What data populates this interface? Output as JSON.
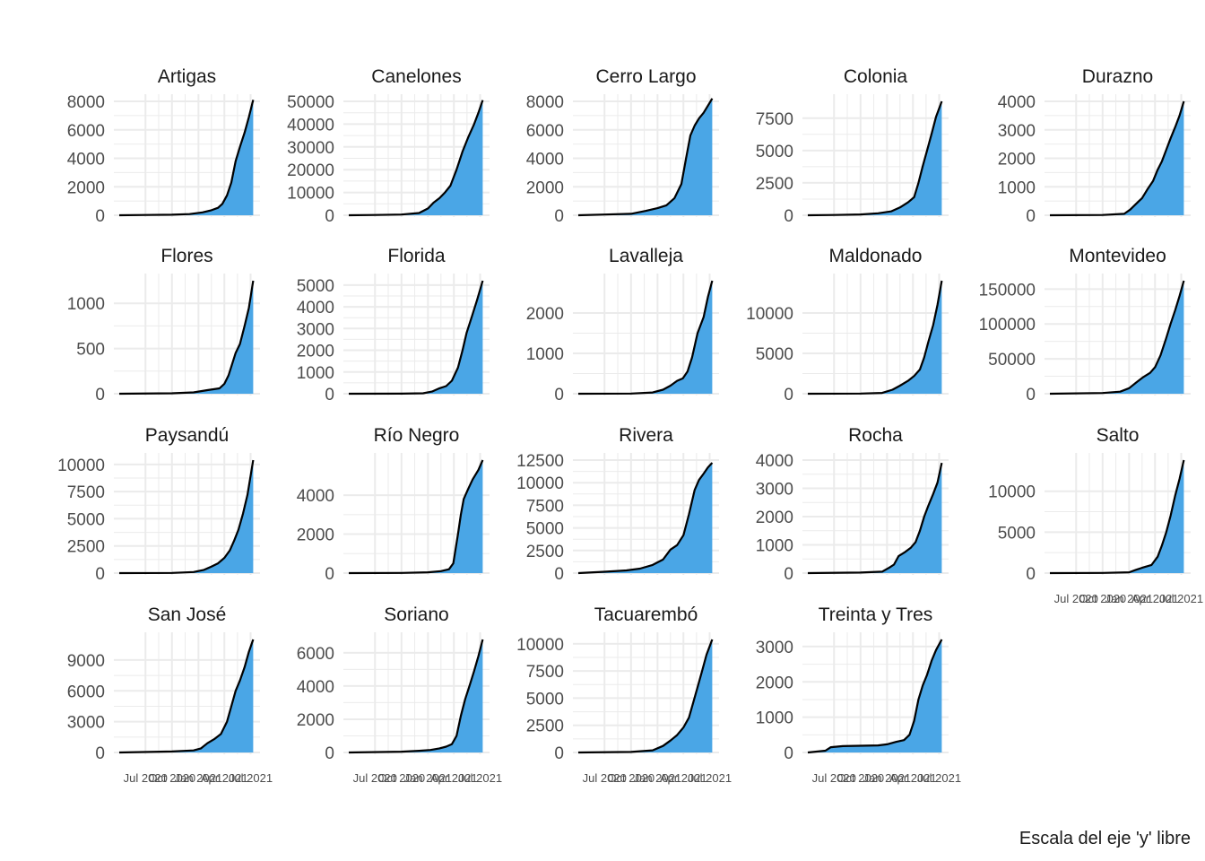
{
  "chart_data": {
    "type": "area",
    "layout": "facet-grid",
    "columns": 5,
    "fill_color": "#4aa6e6",
    "line_color": "#000000",
    "grid_color": "#ebebeb",
    "grid": true,
    "x_domain": [
      "2020-04-01",
      "2021-07-15"
    ],
    "x_ticks": [
      "Jul 2020",
      "Oct 2020",
      "Jan 2021",
      "Apr 2021",
      "Jul 2021"
    ],
    "caption": "Escala del eje 'y' libre",
    "panels": [
      {
        "name": "Artigas",
        "ylim": [
          0,
          8000
        ],
        "yticks": [
          0,
          2000,
          4000,
          6000,
          8000
        ],
        "x": [
          "2020-04-01",
          "2020-07-01",
          "2020-10-01",
          "2020-12-01",
          "2021-01-15",
          "2021-02-15",
          "2021-03-10",
          "2021-03-25",
          "2021-04-10",
          "2021-04-25",
          "2021-05-10",
          "2021-05-25",
          "2021-06-10",
          "2021-06-25",
          "2021-07-10"
        ],
        "y": [
          0,
          20,
          40,
          80,
          200,
          350,
          520,
          800,
          1400,
          2300,
          3800,
          4800,
          5800,
          6900,
          8100
        ]
      },
      {
        "name": "Canelones",
        "ylim": [
          0,
          50000
        ],
        "yticks": [
          0,
          10000,
          20000,
          30000,
          40000,
          50000
        ],
        "x": [
          "2020-04-01",
          "2020-07-01",
          "2020-10-01",
          "2020-12-01",
          "2021-01-01",
          "2021-01-20",
          "2021-02-10",
          "2021-03-01",
          "2021-03-20",
          "2021-04-10",
          "2021-05-01",
          "2021-05-20",
          "2021-06-10",
          "2021-06-25",
          "2021-07-10"
        ],
        "y": [
          0,
          100,
          300,
          1000,
          3000,
          5500,
          7500,
          10000,
          13000,
          20000,
          28000,
          34000,
          40000,
          45000,
          50500
        ]
      },
      {
        "name": "Cerro Largo",
        "ylim": [
          0,
          8000
        ],
        "yticks": [
          0,
          2000,
          4000,
          6000,
          8000
        ],
        "x": [
          "2020-04-01",
          "2020-07-01",
          "2020-10-01",
          "2020-11-20",
          "2021-01-01",
          "2021-02-01",
          "2021-03-01",
          "2021-03-25",
          "2021-04-10",
          "2021-04-25",
          "2021-05-10",
          "2021-05-25",
          "2021-06-10",
          "2021-06-25",
          "2021-07-10"
        ],
        "y": [
          0,
          50,
          100,
          300,
          500,
          700,
          1200,
          2200,
          4000,
          5600,
          6300,
          6800,
          7200,
          7700,
          8200
        ]
      },
      {
        "name": "Colonia",
        "ylim": [
          0,
          8800
        ],
        "yticks": [
          0,
          2500,
          5000,
          7500
        ],
        "x": [
          "2020-04-01",
          "2020-07-01",
          "2020-10-01",
          "2020-12-01",
          "2021-01-15",
          "2021-02-15",
          "2021-03-15",
          "2021-04-05",
          "2021-04-20",
          "2021-05-05",
          "2021-05-20",
          "2021-06-05",
          "2021-06-20",
          "2021-07-10"
        ],
        "y": [
          0,
          20,
          60,
          150,
          300,
          600,
          1000,
          1400,
          2500,
          3800,
          5000,
          6300,
          7600,
          8800
        ]
      },
      {
        "name": "Durazno",
        "ylim": [
          0,
          4000
        ],
        "yticks": [
          0,
          1000,
          2000,
          3000,
          4000
        ],
        "x": [
          "2020-04-01",
          "2020-10-01",
          "2020-12-15",
          "2021-01-05",
          "2021-01-25",
          "2021-02-15",
          "2021-03-05",
          "2021-03-25",
          "2021-04-10",
          "2021-04-25",
          "2021-05-10",
          "2021-05-25",
          "2021-06-10",
          "2021-06-25",
          "2021-07-10"
        ],
        "y": [
          0,
          10,
          50,
          200,
          400,
          600,
          900,
          1200,
          1600,
          1900,
          2300,
          2700,
          3100,
          3500,
          4000
        ]
      },
      {
        "name": "Flores",
        "ylim": [
          0,
          1250
        ],
        "yticks": [
          0,
          500,
          1000
        ],
        "x": [
          "2020-04-01",
          "2020-10-01",
          "2020-12-15",
          "2021-02-01",
          "2021-03-15",
          "2021-04-01",
          "2021-04-15",
          "2021-04-25",
          "2021-05-10",
          "2021-05-25",
          "2021-06-10",
          "2021-06-25",
          "2021-07-10"
        ],
        "y": [
          0,
          5,
          15,
          40,
          60,
          110,
          200,
          300,
          450,
          550,
          750,
          950,
          1250
        ]
      },
      {
        "name": "Florida",
        "ylim": [
          0,
          5200
        ],
        "yticks": [
          0,
          1000,
          2000,
          3000,
          4000,
          5000
        ],
        "x": [
          "2020-04-01",
          "2020-10-01",
          "2020-12-15",
          "2021-01-15",
          "2021-02-10",
          "2021-03-05",
          "2021-03-25",
          "2021-04-15",
          "2021-05-01",
          "2021-05-15",
          "2021-06-01",
          "2021-06-20",
          "2021-07-10"
        ],
        "y": [
          0,
          5,
          20,
          100,
          250,
          350,
          600,
          1200,
          2000,
          2800,
          3500,
          4300,
          5200
        ]
      },
      {
        "name": "Lavalleja",
        "ylim": [
          0,
          2800
        ],
        "yticks": [
          0,
          1000,
          2000
        ],
        "x": [
          "2020-04-01",
          "2020-10-01",
          "2020-12-15",
          "2021-01-20",
          "2021-02-15",
          "2021-03-10",
          "2021-03-30",
          "2021-04-15",
          "2021-05-01",
          "2021-05-20",
          "2021-06-10",
          "2021-06-25",
          "2021-07-10"
        ],
        "y": [
          0,
          5,
          30,
          100,
          200,
          320,
          380,
          550,
          900,
          1500,
          1900,
          2400,
          2800
        ]
      },
      {
        "name": "Maldonado",
        "ylim": [
          0,
          14000
        ],
        "yticks": [
          0,
          5000,
          10000
        ],
        "x": [
          "2020-04-01",
          "2020-10-01",
          "2020-12-15",
          "2021-01-20",
          "2021-02-15",
          "2021-03-15",
          "2021-04-05",
          "2021-04-25",
          "2021-05-10",
          "2021-05-25",
          "2021-06-10",
          "2021-06-25",
          "2021-07-10"
        ],
        "y": [
          0,
          20,
          100,
          500,
          1000,
          1600,
          2200,
          3000,
          4500,
          6500,
          8500,
          11000,
          14000
        ]
      },
      {
        "name": "Montevideo",
        "ylim": [
          0,
          162000
        ],
        "yticks": [
          0,
          50000,
          100000,
          150000
        ],
        "x": [
          "2020-04-01",
          "2020-10-01",
          "2020-12-01",
          "2021-01-01",
          "2021-01-25",
          "2021-02-20",
          "2021-03-15",
          "2021-04-01",
          "2021-04-20",
          "2021-05-10",
          "2021-05-25",
          "2021-06-10",
          "2021-06-25",
          "2021-07-10"
        ],
        "y": [
          0,
          1000,
          3000,
          8000,
          16000,
          24000,
          30000,
          38000,
          55000,
          80000,
          100000,
          120000,
          140000,
          162000
        ]
      },
      {
        "name": "Paysandú",
        "ylim": [
          0,
          10400
        ],
        "yticks": [
          0,
          2500,
          5000,
          7500,
          10000
        ],
        "x": [
          "2020-04-01",
          "2020-10-01",
          "2020-12-15",
          "2021-01-20",
          "2021-02-15",
          "2021-03-10",
          "2021-04-01",
          "2021-04-20",
          "2021-05-05",
          "2021-05-20",
          "2021-06-05",
          "2021-06-20",
          "2021-07-10"
        ],
        "y": [
          0,
          20,
          100,
          300,
          600,
          900,
          1400,
          2100,
          3000,
          4000,
          5500,
          7200,
          10400
        ]
      },
      {
        "name": "Río Negro",
        "ylim": [
          0,
          5800
        ],
        "yticks": [
          0,
          2000,
          4000
        ],
        "x": [
          "2020-04-01",
          "2020-10-01",
          "2021-01-01",
          "2021-02-15",
          "2021-03-15",
          "2021-03-30",
          "2021-04-15",
          "2021-04-25",
          "2021-05-05",
          "2021-05-20",
          "2021-06-05",
          "2021-06-25",
          "2021-07-10"
        ],
        "y": [
          0,
          10,
          40,
          100,
          200,
          500,
          2000,
          3000,
          3800,
          4300,
          4800,
          5300,
          5800
        ]
      },
      {
        "name": "Rivera",
        "ylim": [
          0,
          12500
        ],
        "yticks": [
          0,
          2500,
          5000,
          7500,
          10000,
          12500
        ],
        "x": [
          "2020-04-01",
          "2020-07-01",
          "2020-09-15",
          "2020-11-01",
          "2020-12-15",
          "2021-01-20",
          "2021-02-15",
          "2021-03-10",
          "2021-04-01",
          "2021-04-20",
          "2021-05-10",
          "2021-05-25",
          "2021-06-10",
          "2021-06-25",
          "2021-07-10"
        ],
        "y": [
          0,
          150,
          300,
          500,
          900,
          1500,
          2600,
          3100,
          4200,
          6500,
          9200,
          10300,
          11000,
          11700,
          12200
        ]
      },
      {
        "name": "Rocha",
        "ylim": [
          0,
          4000
        ],
        "yticks": [
          0,
          1000,
          2000,
          3000,
          4000
        ],
        "x": [
          "2020-04-01",
          "2020-10-01",
          "2020-12-15",
          "2021-01-10",
          "2021-01-25",
          "2021-02-10",
          "2021-03-05",
          "2021-03-25",
          "2021-04-10",
          "2021-04-25",
          "2021-05-10",
          "2021-05-25",
          "2021-06-10",
          "2021-06-25",
          "2021-07-10"
        ],
        "y": [
          0,
          20,
          50,
          200,
          300,
          600,
          750,
          900,
          1100,
          1500,
          2000,
          2400,
          2800,
          3200,
          3900
        ]
      },
      {
        "name": "Salto",
        "ylim": [
          0,
          13800
        ],
        "yticks": [
          0,
          5000,
          10000
        ],
        "x": [
          "2020-04-01",
          "2020-10-01",
          "2021-01-01",
          "2021-01-25",
          "2021-02-20",
          "2021-03-20",
          "2021-04-10",
          "2021-04-25",
          "2021-05-10",
          "2021-05-25",
          "2021-06-10",
          "2021-06-25",
          "2021-07-10"
        ],
        "y": [
          0,
          20,
          100,
          400,
          700,
          1000,
          2000,
          3400,
          5000,
          7000,
          9500,
          11500,
          13800
        ]
      },
      {
        "name": "San José",
        "ylim": [
          0,
          11000
        ],
        "yticks": [
          0,
          3000,
          6000,
          9000
        ],
        "x": [
          "2020-04-01",
          "2020-10-01",
          "2020-12-15",
          "2021-01-10",
          "2021-02-01",
          "2021-02-25",
          "2021-03-20",
          "2021-04-10",
          "2021-04-25",
          "2021-05-10",
          "2021-05-25",
          "2021-06-10",
          "2021-06-25",
          "2021-07-10"
        ],
        "y": [
          0,
          100,
          200,
          400,
          900,
          1300,
          1800,
          3000,
          4500,
          6000,
          7000,
          8300,
          9800,
          11000
        ]
      },
      {
        "name": "Soriano",
        "ylim": [
          0,
          6800
        ],
        "yticks": [
          0,
          2000,
          4000,
          6000
        ],
        "x": [
          "2020-04-01",
          "2020-10-01",
          "2020-12-01",
          "2021-01-10",
          "2021-02-10",
          "2021-03-05",
          "2021-03-25",
          "2021-04-10",
          "2021-04-25",
          "2021-05-10",
          "2021-05-25",
          "2021-06-10",
          "2021-06-25",
          "2021-07-10"
        ],
        "y": [
          0,
          50,
          100,
          150,
          250,
          350,
          500,
          1000,
          2200,
          3200,
          4000,
          4900,
          5800,
          6800
        ]
      },
      {
        "name": "Tacuarembó",
        "ylim": [
          0,
          10400
        ],
        "yticks": [
          0,
          2500,
          5000,
          7500,
          10000
        ],
        "x": [
          "2020-04-01",
          "2020-10-01",
          "2020-12-15",
          "2021-01-20",
          "2021-02-15",
          "2021-03-10",
          "2021-04-01",
          "2021-04-20",
          "2021-05-05",
          "2021-05-20",
          "2021-06-05",
          "2021-06-20",
          "2021-07-10"
        ],
        "y": [
          0,
          50,
          200,
          600,
          1100,
          1600,
          2300,
          3200,
          4600,
          6000,
          7500,
          9000,
          10400
        ]
      },
      {
        "name": "Treinta y Tres",
        "ylim": [
          0,
          3200
        ],
        "yticks": [
          0,
          1000,
          2000,
          3000
        ],
        "x": [
          "2020-04-01",
          "2020-06-01",
          "2020-06-20",
          "2020-08-01",
          "2020-10-01",
          "2020-12-01",
          "2021-01-01",
          "2021-02-01",
          "2021-03-01",
          "2021-03-20",
          "2021-04-05",
          "2021-04-20",
          "2021-05-05",
          "2021-05-20",
          "2021-06-05",
          "2021-06-20",
          "2021-07-10"
        ],
        "y": [
          0,
          50,
          150,
          180,
          190,
          200,
          230,
          300,
          350,
          500,
          900,
          1500,
          1900,
          2200,
          2600,
          2900,
          3200
        ]
      }
    ]
  }
}
